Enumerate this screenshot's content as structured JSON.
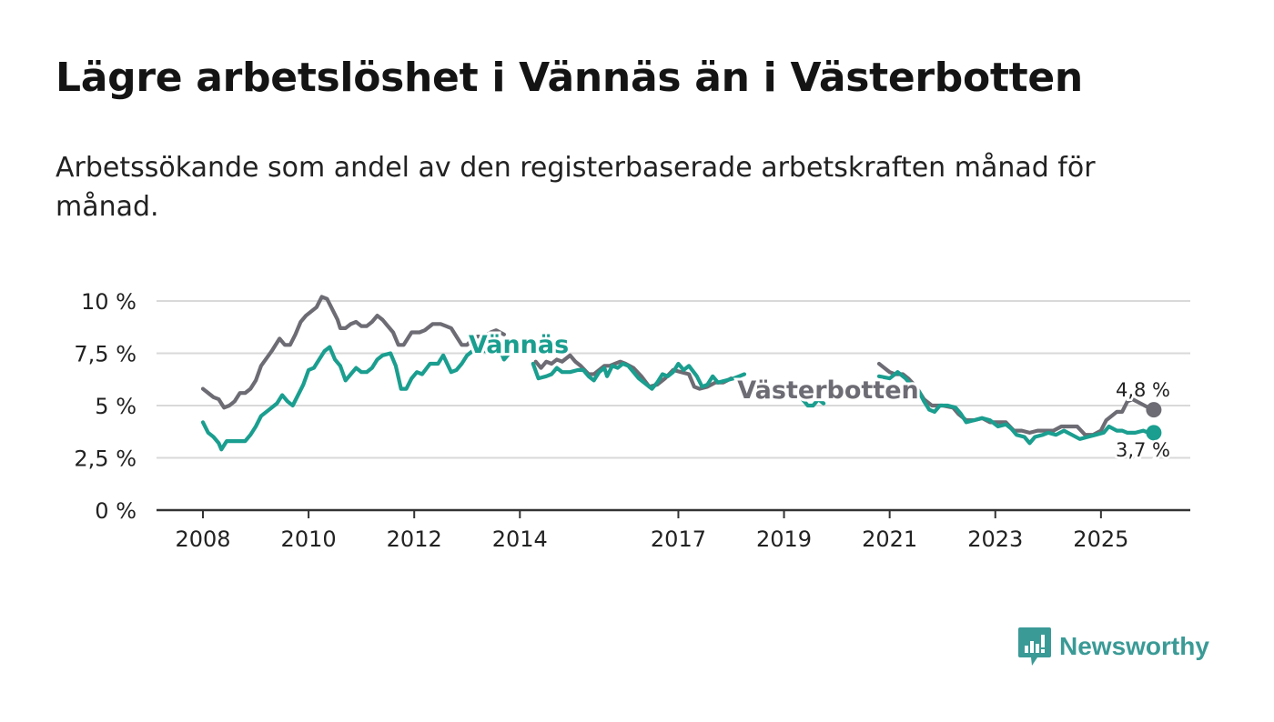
{
  "title": "Lägre arbetslöshet i Vännäs än i Västerbotten",
  "subtitle": "Arbetssökande som andel av den registerbaserade arbetskraften månad för månad.",
  "logo_text": "Newsworthy",
  "colors": {
    "vannas": "#1a9e8f",
    "vasterbotten": "#6d6b73",
    "grid": "#d9d9d9",
    "axis": "#333333"
  },
  "chart_data": {
    "type": "line",
    "title": "Lägre arbetslöshet i Vännäs än i Västerbotten",
    "xlabel": "",
    "ylabel": "",
    "x_range": [
      2007.7,
      2026.2
    ],
    "ylim": [
      0,
      10
    ],
    "y_ticks": [
      0,
      2.5,
      5,
      7.5,
      10
    ],
    "y_tick_labels": [
      "0 %",
      "2,5 %",
      "5 %",
      "7,5 %",
      "10 %"
    ],
    "x_ticks": [
      2008,
      2010,
      2012,
      2014,
      2017,
      2019,
      2021,
      2023,
      2025
    ],
    "x_tick_labels": [
      "2008",
      "2010",
      "2012",
      "2014",
      "2017",
      "2019",
      "2021",
      "2023",
      "2025"
    ],
    "series": [
      {
        "name": "Västerbotten",
        "label": "Västerbotten",
        "end_label": "4,8 %",
        "points": [
          [
            2008.0,
            5.8
          ],
          [
            2008.1,
            5.6
          ],
          [
            2008.2,
            5.4
          ],
          [
            2008.3,
            5.3
          ],
          [
            2008.35,
            5.1
          ],
          [
            2008.4,
            4.9
          ],
          [
            2008.5,
            5.0
          ],
          [
            2008.6,
            5.2
          ],
          [
            2008.7,
            5.6
          ],
          [
            2008.8,
            5.6
          ],
          [
            2008.9,
            5.8
          ],
          [
            2009.0,
            6.2
          ],
          [
            2009.1,
            6.9
          ],
          [
            2009.3,
            7.6
          ],
          [
            2009.45,
            8.2
          ],
          [
            2009.55,
            7.9
          ],
          [
            2009.65,
            7.9
          ],
          [
            2009.75,
            8.4
          ],
          [
            2009.85,
            9.0
          ],
          [
            2009.95,
            9.3
          ],
          [
            2010.05,
            9.5
          ],
          [
            2010.15,
            9.7
          ],
          [
            2010.25,
            10.2
          ],
          [
            2010.35,
            10.1
          ],
          [
            2010.45,
            9.6
          ],
          [
            2010.55,
            9.1
          ],
          [
            2010.6,
            8.7
          ],
          [
            2010.7,
            8.7
          ],
          [
            2010.8,
            8.9
          ],
          [
            2010.9,
            9.0
          ],
          [
            2011.0,
            8.8
          ],
          [
            2011.1,
            8.8
          ],
          [
            2011.2,
            9.0
          ],
          [
            2011.3,
            9.3
          ],
          [
            2011.4,
            9.1
          ],
          [
            2011.5,
            8.8
          ],
          [
            2011.6,
            8.5
          ],
          [
            2011.7,
            7.9
          ],
          [
            2011.8,
            7.9
          ],
          [
            2011.95,
            8.5
          ],
          [
            2012.1,
            8.5
          ],
          [
            2012.2,
            8.6
          ],
          [
            2012.35,
            8.9
          ],
          [
            2012.5,
            8.9
          ],
          [
            2012.6,
            8.8
          ],
          [
            2012.7,
            8.7
          ],
          [
            2012.8,
            8.3
          ],
          [
            2012.9,
            7.9
          ],
          [
            2013.0,
            7.9
          ],
          [
            2013.1,
            8.2
          ],
          [
            2013.2,
            8.3
          ],
          [
            2013.3,
            8.3
          ],
          [
            2013.45,
            8.5
          ],
          [
            2013.55,
            8.6
          ],
          [
            2013.7,
            8.4
          ],
          [
            2014.3,
            7.1
          ],
          [
            2014.4,
            6.8
          ],
          [
            2014.5,
            7.1
          ],
          [
            2014.6,
            7.0
          ],
          [
            2014.7,
            7.2
          ],
          [
            2014.8,
            7.1
          ],
          [
            2014.95,
            7.4
          ],
          [
            2015.05,
            7.1
          ],
          [
            2015.15,
            6.9
          ],
          [
            2015.3,
            6.5
          ],
          [
            2015.4,
            6.5
          ],
          [
            2015.5,
            6.7
          ],
          [
            2015.6,
            6.9
          ],
          [
            2015.7,
            6.9
          ],
          [
            2015.8,
            7.0
          ],
          [
            2015.9,
            7.1
          ],
          [
            2016.0,
            7.0
          ],
          [
            2016.15,
            6.8
          ],
          [
            2016.3,
            6.4
          ],
          [
            2016.45,
            5.9
          ],
          [
            2016.6,
            6.0
          ],
          [
            2016.75,
            6.3
          ],
          [
            2016.9,
            6.7
          ],
          [
            2017.05,
            6.6
          ],
          [
            2017.2,
            6.5
          ],
          [
            2017.3,
            5.9
          ],
          [
            2017.4,
            5.8
          ],
          [
            2017.55,
            5.9
          ],
          [
            2017.7,
            6.1
          ],
          [
            2017.85,
            6.1
          ],
          [
            2018.0,
            6.3
          ],
          [
            2020.8,
            7.0
          ],
          [
            2020.9,
            6.8
          ],
          [
            2021.0,
            6.6
          ],
          [
            2021.1,
            6.5
          ],
          [
            2021.25,
            6.5
          ],
          [
            2021.35,
            6.3
          ],
          [
            2021.5,
            5.9
          ],
          [
            2021.65,
            5.3
          ],
          [
            2021.8,
            5.0
          ],
          [
            2022.0,
            5.0
          ],
          [
            2022.2,
            4.9
          ],
          [
            2022.3,
            4.6
          ],
          [
            2022.45,
            4.3
          ],
          [
            2022.6,
            4.3
          ],
          [
            2022.75,
            4.4
          ],
          [
            2022.9,
            4.2
          ],
          [
            2023.05,
            4.2
          ],
          [
            2023.2,
            4.2
          ],
          [
            2023.35,
            3.8
          ],
          [
            2023.5,
            3.8
          ],
          [
            2023.65,
            3.7
          ],
          [
            2023.8,
            3.8
          ],
          [
            2023.95,
            3.8
          ],
          [
            2024.1,
            3.8
          ],
          [
            2024.25,
            4.0
          ],
          [
            2024.4,
            4.0
          ],
          [
            2024.55,
            4.0
          ],
          [
            2024.7,
            3.6
          ],
          [
            2024.85,
            3.6
          ],
          [
            2025.0,
            3.8
          ],
          [
            2025.1,
            4.3
          ],
          [
            2025.2,
            4.5
          ],
          [
            2025.3,
            4.7
          ],
          [
            2025.4,
            4.7
          ],
          [
            2025.5,
            5.2
          ],
          [
            2025.6,
            5.3
          ],
          [
            2025.75,
            5.1
          ],
          [
            2025.9,
            4.9
          ],
          [
            2026.0,
            4.8
          ]
        ]
      },
      {
        "name": "Vännäs",
        "label": "Vännäs",
        "end_label": "3,7 %",
        "points": [
          [
            2008.0,
            4.2
          ],
          [
            2008.1,
            3.7
          ],
          [
            2008.2,
            3.5
          ],
          [
            2008.3,
            3.2
          ],
          [
            2008.35,
            2.9
          ],
          [
            2008.45,
            3.3
          ],
          [
            2008.55,
            3.3
          ],
          [
            2008.7,
            3.3
          ],
          [
            2008.8,
            3.3
          ],
          [
            2008.9,
            3.6
          ],
          [
            2009.0,
            4.0
          ],
          [
            2009.1,
            4.5
          ],
          [
            2009.25,
            4.8
          ],
          [
            2009.4,
            5.1
          ],
          [
            2009.5,
            5.5
          ],
          [
            2009.6,
            5.2
          ],
          [
            2009.7,
            5.0
          ],
          [
            2009.8,
            5.5
          ],
          [
            2009.9,
            6.0
          ],
          [
            2010.0,
            6.7
          ],
          [
            2010.1,
            6.8
          ],
          [
            2010.2,
            7.2
          ],
          [
            2010.3,
            7.6
          ],
          [
            2010.4,
            7.8
          ],
          [
            2010.5,
            7.2
          ],
          [
            2010.6,
            6.9
          ],
          [
            2010.7,
            6.2
          ],
          [
            2010.8,
            6.5
          ],
          [
            2010.9,
            6.8
          ],
          [
            2011.0,
            6.6
          ],
          [
            2011.1,
            6.6
          ],
          [
            2011.2,
            6.8
          ],
          [
            2011.3,
            7.2
          ],
          [
            2011.4,
            7.4
          ],
          [
            2011.55,
            7.5
          ],
          [
            2011.65,
            6.9
          ],
          [
            2011.75,
            5.8
          ],
          [
            2011.85,
            5.8
          ],
          [
            2011.95,
            6.3
          ],
          [
            2012.05,
            6.6
          ],
          [
            2012.15,
            6.5
          ],
          [
            2012.3,
            7.0
          ],
          [
            2012.45,
            7.0
          ],
          [
            2012.55,
            7.4
          ],
          [
            2012.7,
            6.6
          ],
          [
            2012.8,
            6.7
          ],
          [
            2012.9,
            7.0
          ],
          [
            2013.0,
            7.4
          ],
          [
            2013.1,
            7.6
          ],
          [
            2013.2,
            7.6
          ],
          [
            2013.35,
            7.6
          ],
          [
            2013.65,
            7.5
          ],
          [
            2013.7,
            7.2
          ],
          [
            2013.8,
            7.5
          ],
          [
            2013.9,
            7.5
          ],
          [
            2014.25,
            7.0
          ],
          [
            2014.35,
            6.3
          ],
          [
            2014.5,
            6.4
          ],
          [
            2014.6,
            6.5
          ],
          [
            2014.7,
            6.8
          ],
          [
            2014.8,
            6.6
          ],
          [
            2014.95,
            6.6
          ],
          [
            2015.1,
            6.7
          ],
          [
            2015.2,
            6.7
          ],
          [
            2015.3,
            6.4
          ],
          [
            2015.4,
            6.2
          ],
          [
            2015.5,
            6.6
          ],
          [
            2015.6,
            6.8
          ],
          [
            2015.65,
            6.4
          ],
          [
            2015.75,
            6.9
          ],
          [
            2015.85,
            6.8
          ],
          [
            2015.95,
            7.0
          ],
          [
            2016.05,
            6.9
          ],
          [
            2016.15,
            6.6
          ],
          [
            2016.25,
            6.3
          ],
          [
            2016.4,
            6.0
          ],
          [
            2016.5,
            5.8
          ],
          [
            2016.6,
            6.1
          ],
          [
            2016.7,
            6.5
          ],
          [
            2016.8,
            6.4
          ],
          [
            2016.9,
            6.6
          ],
          [
            2017.0,
            7.0
          ],
          [
            2017.1,
            6.7
          ],
          [
            2017.2,
            6.9
          ],
          [
            2017.35,
            6.4
          ],
          [
            2017.45,
            5.9
          ],
          [
            2017.55,
            6.0
          ],
          [
            2017.65,
            6.4
          ],
          [
            2017.75,
            6.1
          ],
          [
            2017.9,
            6.2
          ],
          [
            2018.05,
            6.3
          ],
          [
            2018.15,
            6.4
          ],
          [
            2018.25,
            6.5
          ],
          [
            2019.35,
            5.3
          ],
          [
            2019.45,
            5.0
          ],
          [
            2019.55,
            5.0
          ],
          [
            2019.65,
            5.3
          ],
          [
            2019.75,
            5.1
          ],
          [
            2020.8,
            6.4
          ],
          [
            2021.0,
            6.3
          ],
          [
            2021.15,
            6.6
          ],
          [
            2021.3,
            6.3
          ],
          [
            2021.4,
            6.0
          ],
          [
            2021.55,
            5.7
          ],
          [
            2021.65,
            5.2
          ],
          [
            2021.75,
            4.8
          ],
          [
            2021.85,
            4.7
          ],
          [
            2021.95,
            5.0
          ],
          [
            2022.1,
            5.0
          ],
          [
            2022.25,
            4.9
          ],
          [
            2022.35,
            4.6
          ],
          [
            2022.45,
            4.2
          ],
          [
            2022.6,
            4.3
          ],
          [
            2022.75,
            4.4
          ],
          [
            2022.9,
            4.3
          ],
          [
            2023.05,
            4.0
          ],
          [
            2023.2,
            4.1
          ],
          [
            2023.3,
            3.9
          ],
          [
            2023.4,
            3.6
          ],
          [
            2023.55,
            3.5
          ],
          [
            2023.65,
            3.2
          ],
          [
            2023.75,
            3.5
          ],
          [
            2023.9,
            3.6
          ],
          [
            2024.0,
            3.7
          ],
          [
            2024.15,
            3.6
          ],
          [
            2024.3,
            3.8
          ],
          [
            2024.45,
            3.6
          ],
          [
            2024.6,
            3.4
          ],
          [
            2024.75,
            3.5
          ],
          [
            2024.9,
            3.6
          ],
          [
            2025.05,
            3.7
          ],
          [
            2025.15,
            4.0
          ],
          [
            2025.3,
            3.8
          ],
          [
            2025.4,
            3.8
          ],
          [
            2025.5,
            3.7
          ],
          [
            2025.65,
            3.7
          ],
          [
            2025.8,
            3.8
          ],
          [
            2025.9,
            3.7
          ],
          [
            2026.0,
            3.7
          ]
        ]
      }
    ]
  }
}
